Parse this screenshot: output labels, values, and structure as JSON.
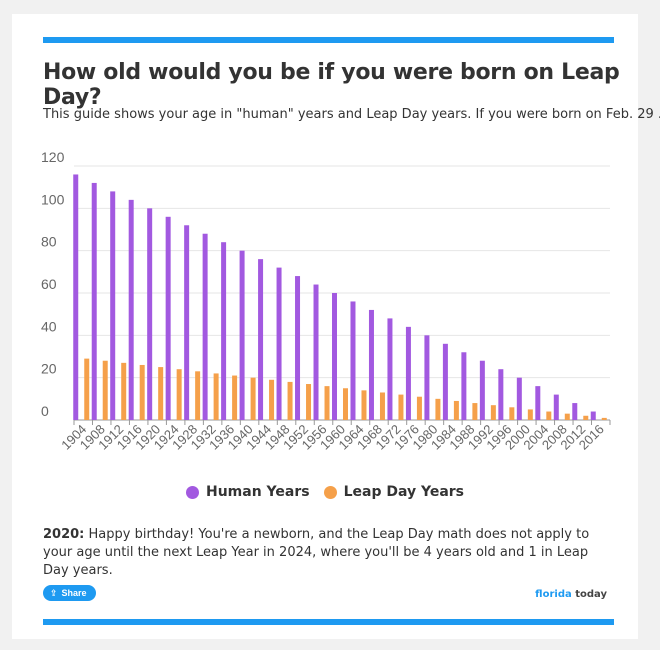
{
  "header": {
    "title": "How old would you be if you were born on Leap Day?",
    "subtitle": "This guide shows your age in \"human\" years and Leap Day years. If you were born on Feb. 29 ..."
  },
  "colors": {
    "accent": "#1e9af1",
    "human_years": "#a259e0",
    "leap_day_years": "#f5a04a"
  },
  "legend": {
    "human_label": "Human Years",
    "leap_label": "Leap Day Years"
  },
  "chart_data": {
    "type": "bar",
    "title": "",
    "xlabel": "",
    "ylabel": "",
    "ylim": [
      0,
      120
    ],
    "yticks": [
      0,
      20,
      40,
      60,
      80,
      100,
      120
    ],
    "grid": true,
    "legend_position": "bottom-center",
    "categories": [
      "1904",
      "1908",
      "1912",
      "1916",
      "1920",
      "1924",
      "1928",
      "1932",
      "1936",
      "1940",
      "1944",
      "1948",
      "1952",
      "1956",
      "1960",
      "1964",
      "1968",
      "1972",
      "1976",
      "1980",
      "1984",
      "1988",
      "1992",
      "1996",
      "2000",
      "2004",
      "2008",
      "2012",
      "2016"
    ],
    "series": [
      {
        "name": "Human Years",
        "values": [
          116,
          112,
          108,
          104,
          100,
          96,
          92,
          88,
          84,
          80,
          76,
          72,
          68,
          64,
          60,
          56,
          52,
          48,
          44,
          40,
          36,
          32,
          28,
          24,
          20,
          16,
          12,
          8,
          4
        ]
      },
      {
        "name": "Leap Day Years",
        "values": [
          29,
          28,
          27,
          26,
          25,
          24,
          23,
          22,
          21,
          20,
          19,
          18,
          17,
          16,
          15,
          14,
          13,
          12,
          11,
          10,
          9,
          8,
          7,
          6,
          5,
          4,
          3,
          2,
          1
        ]
      }
    ]
  },
  "note": {
    "lead": "2020:",
    "text": " Happy birthday! You're a newborn, and the Leap Day math does not apply to your age until the next Leap Year in 2024, where you'll be 4 years old and 1 in Leap Day years."
  },
  "footer": {
    "share_label": "Share",
    "share_icon": "share-icon",
    "logo_part1": "florida",
    "logo_part2": "today"
  }
}
